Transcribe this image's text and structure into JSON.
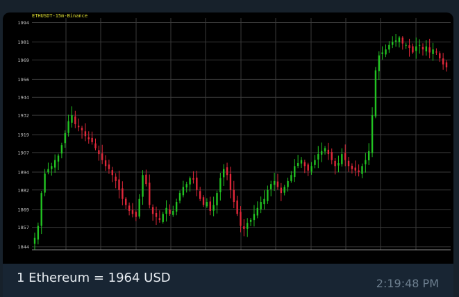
{
  "message": {
    "caption": "1 Ethereum = 1964 USD",
    "time": "2:19:48 PM"
  },
  "colors": {
    "up": "#22c322",
    "down": "#e0283a",
    "grid": "#3a3a3a",
    "label": "#c8c8c8",
    "title": "#e6e633"
  },
  "chart_data": {
    "type": "candlestick",
    "title": "ETHUSDT-15m-Binance",
    "y_ticks": [
      1844,
      1857,
      1869,
      1882,
      1894,
      1907,
      1919,
      1932,
      1944,
      1956,
      1969,
      1981,
      1994
    ],
    "ylim": [
      1842,
      1997
    ],
    "grid": true,
    "close_series": [
      1850,
      1858,
      1880,
      1893,
      1896,
      1898,
      1902,
      1905,
      1912,
      1920,
      1928,
      1932,
      1926,
      1924,
      1922,
      1918,
      1916,
      1914,
      1910,
      1906,
      1902,
      1898,
      1896,
      1892,
      1888,
      1882,
      1876,
      1872,
      1868,
      1866,
      1864,
      1876,
      1892,
      1886,
      1872,
      1866,
      1864,
      1862,
      1866,
      1870,
      1866,
      1868,
      1874,
      1880,
      1884,
      1886,
      1890,
      1889,
      1882,
      1876,
      1872,
      1874,
      1868,
      1872,
      1880,
      1890,
      1896,
      1892,
      1882,
      1874,
      1866,
      1858,
      1856,
      1860,
      1862,
      1866,
      1870,
      1874,
      1876,
      1882,
      1886,
      1888,
      1884,
      1880,
      1884,
      1888,
      1892,
      1898,
      1900,
      1902,
      1898,
      1895,
      1898,
      1902,
      1906,
      1908,
      1910,
      1906,
      1902,
      1898,
      1900,
      1906,
      1902,
      1898,
      1896,
      1895,
      1894,
      1898,
      1902,
      1908,
      1932,
      1962,
      1972,
      1974,
      1976,
      1979,
      1981,
      1982,
      1984,
      1980,
      1979,
      1977,
      1974,
      1978,
      1979,
      1976,
      1978,
      1974,
      1976,
      1974,
      1970,
      1966,
      1964
    ]
  }
}
